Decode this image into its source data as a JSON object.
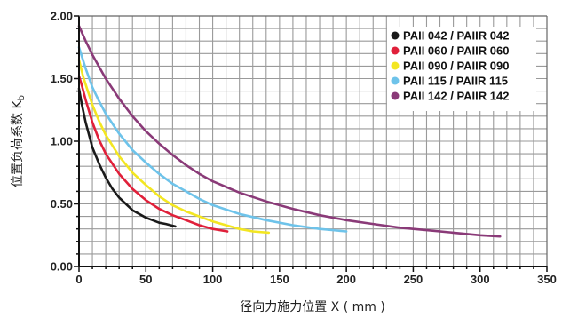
{
  "chart_data": {
    "type": "line",
    "xlabel": "径向力施力位置 X ( mm )",
    "ylabel": "位置负荷系数 K",
    "ylabel_subscript": "b",
    "xlim": [
      0,
      350
    ],
    "ylim": [
      0,
      2.0
    ],
    "x_ticks": [
      "0",
      "50",
      "100",
      "150",
      "200",
      "250",
      "300",
      "350"
    ],
    "y_ticks": [
      "0.00",
      "0.50",
      "1.00",
      "1.50",
      "2.00"
    ],
    "grid": true,
    "legend_position": "top-right",
    "series": [
      {
        "name": "PAII 042 / PAIIR 042",
        "color": "#1a1a1a",
        "points": [
          [
            0,
            1.42
          ],
          [
            2,
            1.3
          ],
          [
            5,
            1.15
          ],
          [
            10,
            0.95
          ],
          [
            15,
            0.82
          ],
          [
            20,
            0.71
          ],
          [
            25,
            0.62
          ],
          [
            30,
            0.55
          ],
          [
            35,
            0.5
          ],
          [
            40,
            0.45
          ],
          [
            45,
            0.42
          ],
          [
            50,
            0.39
          ],
          [
            55,
            0.37
          ],
          [
            60,
            0.35
          ],
          [
            65,
            0.34
          ],
          [
            72,
            0.32
          ]
        ]
      },
      {
        "name": "PAII 060 / PAIIR 060",
        "color": "#e0203a",
        "points": [
          [
            0,
            1.52
          ],
          [
            2,
            1.45
          ],
          [
            5,
            1.33
          ],
          [
            10,
            1.15
          ],
          [
            15,
            1.01
          ],
          [
            20,
            0.9
          ],
          [
            30,
            0.74
          ],
          [
            40,
            0.62
          ],
          [
            50,
            0.53
          ],
          [
            60,
            0.46
          ],
          [
            70,
            0.41
          ],
          [
            80,
            0.37
          ],
          [
            90,
            0.33
          ],
          [
            100,
            0.3
          ],
          [
            111,
            0.28
          ]
        ]
      },
      {
        "name": "PAII 090 / PAIIR 090",
        "color": "#f3e622",
        "points": [
          [
            0,
            1.65
          ],
          [
            3,
            1.52
          ],
          [
            6,
            1.42
          ],
          [
            10,
            1.29
          ],
          [
            15,
            1.16
          ],
          [
            20,
            1.05
          ],
          [
            30,
            0.88
          ],
          [
            40,
            0.75
          ],
          [
            50,
            0.65
          ],
          [
            60,
            0.56
          ],
          [
            70,
            0.49
          ],
          [
            80,
            0.44
          ],
          [
            90,
            0.4
          ],
          [
            100,
            0.36
          ],
          [
            110,
            0.33
          ],
          [
            120,
            0.3
          ],
          [
            130,
            0.28
          ],
          [
            142,
            0.27
          ]
        ]
      },
      {
        "name": "PAII 115 / PAIIR 115",
        "color": "#6ec3ea",
        "points": [
          [
            0,
            1.75
          ],
          [
            5,
            1.58
          ],
          [
            10,
            1.43
          ],
          [
            15,
            1.32
          ],
          [
            20,
            1.22
          ],
          [
            30,
            1.06
          ],
          [
            40,
            0.93
          ],
          [
            50,
            0.83
          ],
          [
            60,
            0.74
          ],
          [
            70,
            0.66
          ],
          [
            80,
            0.6
          ],
          [
            90,
            0.54
          ],
          [
            100,
            0.49
          ],
          [
            120,
            0.42
          ],
          [
            140,
            0.37
          ],
          [
            160,
            0.33
          ],
          [
            180,
            0.3
          ],
          [
            200,
            0.28
          ]
        ]
      },
      {
        "name": "PAII 142 / PAIIR 142",
        "color": "#8a3a78",
        "points": [
          [
            0,
            1.92
          ],
          [
            5,
            1.8
          ],
          [
            10,
            1.69
          ],
          [
            20,
            1.5
          ],
          [
            30,
            1.34
          ],
          [
            40,
            1.2
          ],
          [
            50,
            1.08
          ],
          [
            60,
            0.98
          ],
          [
            70,
            0.89
          ],
          [
            80,
            0.81
          ],
          [
            90,
            0.74
          ],
          [
            100,
            0.68
          ],
          [
            120,
            0.59
          ],
          [
            140,
            0.52
          ],
          [
            160,
            0.46
          ],
          [
            180,
            0.41
          ],
          [
            200,
            0.37
          ],
          [
            220,
            0.34
          ],
          [
            240,
            0.31
          ],
          [
            260,
            0.29
          ],
          [
            280,
            0.27
          ],
          [
            300,
            0.25
          ],
          [
            315,
            0.24
          ]
        ]
      }
    ]
  }
}
